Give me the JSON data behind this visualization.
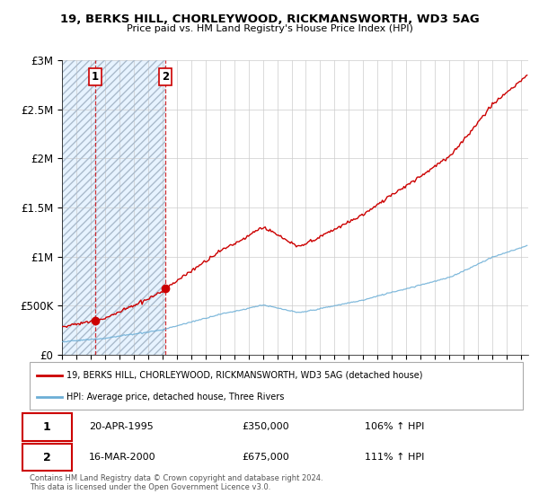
{
  "title1": "19, BERKS HILL, CHORLEYWOOD, RICKMANSWORTH, WD3 5AG",
  "title2": "Price paid vs. HM Land Registry's House Price Index (HPI)",
  "ylabel_ticks": [
    "£0",
    "£500K",
    "£1M",
    "£1.5M",
    "£2M",
    "£2.5M",
    "£3M"
  ],
  "ylabel_values": [
    0,
    500000,
    1000000,
    1500000,
    2000000,
    2500000,
    3000000
  ],
  "ylim": [
    0,
    3000000
  ],
  "xlim_start": 1993.0,
  "xlim_end": 2025.5,
  "sale1_x": 1995.3,
  "sale1_y": 350000,
  "sale2_x": 2000.21,
  "sale2_y": 675000,
  "hpi_color": "#6baed6",
  "price_color": "#cc0000",
  "annotation_box_color": "#cc0000",
  "legend_line1": "19, BERKS HILL, CHORLEYWOOD, RICKMANSWORTH, WD3 5AG (detached house)",
  "legend_line2": "HPI: Average price, detached house, Three Rivers",
  "table_row1": [
    "1",
    "20-APR-1995",
    "£350,000",
    "106% ↑ HPI"
  ],
  "table_row2": [
    "2",
    "16-MAR-2000",
    "£675,000",
    "111% ↑ HPI"
  ],
  "footnote": "Contains HM Land Registry data © Crown copyright and database right 2024.\nThis data is licensed under the Open Government Licence v3.0.",
  "bg_color": "#ffffff",
  "grid_color": "#cccccc"
}
